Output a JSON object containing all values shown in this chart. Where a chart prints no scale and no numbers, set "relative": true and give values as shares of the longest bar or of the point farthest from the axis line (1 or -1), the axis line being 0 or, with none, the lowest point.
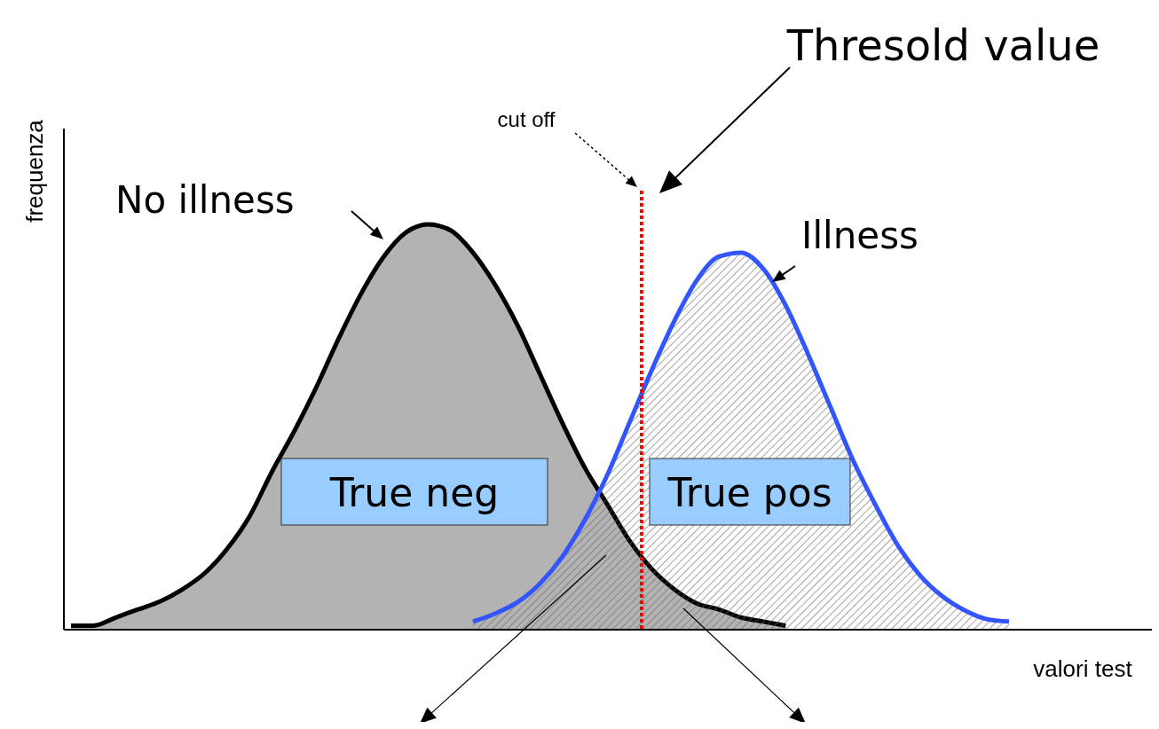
{
  "chart_data": {
    "type": "area",
    "relative": true,
    "xlabel": "valori test",
    "ylabel": "frequenza",
    "categories": [
      null,
      null,
      null,
      null,
      null,
      null,
      null,
      null,
      null,
      null,
      null,
      null,
      null,
      null,
      null,
      null,
      null,
      null,
      null,
      null,
      null,
      null,
      null,
      null,
      null,
      null,
      null,
      null,
      null,
      null,
      null,
      null,
      null,
      null,
      null,
      null,
      null,
      null,
      null,
      null,
      null,
      null,
      null
    ],
    "series": [
      {
        "name": "No illness",
        "color": "#000000",
        "values": [
          0.01,
          0.01,
          0.03,
          0.05,
          0.07,
          0.1,
          0.14,
          0.2,
          0.28,
          0.39,
          0.49,
          0.6,
          0.72,
          0.83,
          0.92,
          0.98,
          1,
          0.985,
          0.93,
          0.85,
          0.75,
          0.63,
          0.51,
          0.4,
          0.31,
          0.22,
          0.15,
          0.1,
          0.065,
          0.05,
          0.03,
          0.02,
          0.01,
          null,
          null,
          null,
          null,
          null,
          null,
          null,
          null,
          null,
          null
        ]
      },
      {
        "name": "Illness",
        "color": "#3355ff",
        "values": [
          null,
          null,
          null,
          null,
          null,
          null,
          null,
          null,
          null,
          null,
          null,
          null,
          null,
          null,
          null,
          null,
          null,
          null,
          0.02,
          0.04,
          0.068,
          0.114,
          0.18,
          0.27,
          0.38,
          0.51,
          0.64,
          0.76,
          0.86,
          0.92,
          0.93,
          0.89,
          0.8,
          0.68,
          0.55,
          0.42,
          0.31,
          0.21,
          0.135,
          0.083,
          0.048,
          0.026,
          0.02
        ]
      }
    ],
    "annotations": [
      "Thresold value",
      "True neg",
      "True pos",
      "cut off"
    ],
    "legend": "top left"
  }
}
